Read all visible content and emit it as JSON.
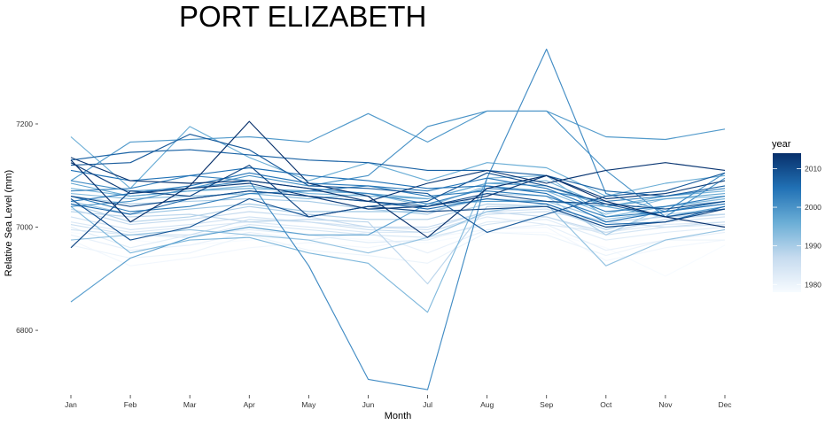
{
  "chart_data": {
    "type": "line",
    "title": "PORT ELIZABETH",
    "xlabel": "Month",
    "ylabel": "Relative Sea Level (mm)",
    "categories": [
      "Jan",
      "Feb",
      "Mar",
      "Apr",
      "May",
      "Jun",
      "Jul",
      "Aug",
      "Sep",
      "Oct",
      "Nov",
      "Dec"
    ],
    "y_ticks": [
      6800,
      7000,
      7200
    ],
    "ylim": [
      6680,
      7375
    ],
    "grid": false,
    "legend": {
      "title": "year",
      "position": "right",
      "ticks": [
        1980,
        1990,
        2000,
        2010
      ],
      "range": [
        1978,
        2014
      ],
      "color_low": "#f7fbff",
      "color_high": "#08306b"
    },
    "series": [
      {
        "year": 1978,
        "values": [
          6990,
          6975,
          6965,
          6975,
          6985,
          6975,
          6970,
          6990,
          6990,
          6960,
          6905,
          6965
        ]
      },
      {
        "year": 1979,
        "values": [
          6975,
          6925,
          6940,
          6960,
          6970,
          6960,
          6980,
          6995,
          7000,
          6935,
          6960,
          6975
        ]
      },
      {
        "year": 1980,
        "values": [
          6965,
          6940,
          6950,
          6985,
          6955,
          6945,
          6930,
          6990,
          6985,
          6945,
          6975,
          6975
        ]
      },
      {
        "year": 1981,
        "values": [
          6985,
          6955,
          6965,
          6990,
          6975,
          6990,
          6950,
          6995,
          7005,
          6955,
          6975,
          6990
        ]
      },
      {
        "year": 1982,
        "values": [
          7000,
          6960,
          6985,
          6995,
          6985,
          6970,
          6975,
          7010,
          7015,
          6975,
          6990,
          7000
        ]
      },
      {
        "year": 1983,
        "values": [
          7010,
          6990,
          7000,
          7010,
          7000,
          6990,
          6990,
          7020,
          7005,
          6990,
          7005,
          7010
        ]
      },
      {
        "year": 1984,
        "values": [
          6995,
          6985,
          6980,
          7005,
          6995,
          6985,
          6980,
          7005,
          7020,
          6985,
          7000,
          7005
        ]
      },
      {
        "year": 1985,
        "values": [
          7020,
          6995,
          7005,
          7020,
          7010,
          7000,
          6995,
          7030,
          7035,
          7000,
          7010,
          7020
        ]
      },
      {
        "year": 1986,
        "values": [
          7005,
          6985,
          6985,
          7015,
          7010,
          6995,
          6990,
          7025,
          7030,
          7010,
          7000,
          7010
        ]
      },
      {
        "year": 1987,
        "values": [
          7035,
          7005,
          7015,
          7030,
          7020,
          7000,
          7000,
          7030,
          7020,
          6990,
          7015,
          7025
        ]
      },
      {
        "year": 1988,
        "values": [
          7030,
          7020,
          7025,
          7010,
          7015,
          7010,
          6890,
          7040,
          7040,
          7010,
          7020,
          7025
        ]
      },
      {
        "year": 1989,
        "values": [
          7045,
          7010,
          7020,
          7040,
          7025,
          7015,
          7015,
          7045,
          7040,
          6995,
          7025,
          7035
        ]
      },
      {
        "year": 1990,
        "values": [
          7060,
          7045,
          7050,
          7055,
          7050,
          7035,
          7025,
          7065,
          7060,
          6985,
          7040,
          7050
        ]
      },
      {
        "year": 1991,
        "values": [
          7050,
          7025,
          7035,
          7045,
          7030,
          7030,
          7030,
          7055,
          7050,
          7015,
          7030,
          7045
        ]
      },
      {
        "year": 1992,
        "values": [
          6975,
          6985,
          6995,
          6985,
          6975,
          6950,
          6980,
          7030,
          7045,
          6925,
          6975,
          6995
        ]
      },
      {
        "year": 1993,
        "values": [
          7065,
          7055,
          7060,
          7065,
          7055,
          7065,
          7040,
          7080,
          7070,
          7025,
          7055,
          7060
        ]
      },
      {
        "year": 1994,
        "values": [
          7040,
          6950,
          6975,
          6980,
          6950,
          6930,
          6835,
          7095,
          7100,
          7020,
          7040,
          7055
        ]
      },
      {
        "year": 1995,
        "values": [
          7075,
          7060,
          7070,
          7080,
          7065,
          7060,
          7055,
          7085,
          7090,
          7040,
          7060,
          7070
        ]
      },
      {
        "year": 1996,
        "values": [
          7175,
          7075,
          7195,
          7135,
          7090,
          7125,
          7090,
          7125,
          7115,
          7060,
          7085,
          7100
        ]
      },
      {
        "year": 1997,
        "values": [
          7085,
          7060,
          7070,
          7075,
          7070,
          7065,
          7055,
          7085,
          7080,
          7040,
          7055,
          7065
        ]
      },
      {
        "year": 1998,
        "values": [
          6855,
          6940,
          6980,
          7000,
          6985,
          6985,
          7045,
          7050,
          7050,
          7040,
          7020,
          7040
        ]
      },
      {
        "year": 1999,
        "values": [
          7090,
          7165,
          7170,
          7175,
          7165,
          7220,
          7165,
          7225,
          7225,
          7175,
          7170,
          7190
        ]
      },
      {
        "year": 2000,
        "values": [
          7040,
          7050,
          7075,
          7100,
          7080,
          7100,
          7195,
          7225,
          7225,
          7110,
          7020,
          7095
        ]
      },
      {
        "year": 2001,
        "values": [
          7090,
          7070,
          7075,
          7090,
          6925,
          6705,
          6685,
          7095,
          7345,
          7065,
          7030,
          7105
        ]
      },
      {
        "year": 2002,
        "values": [
          7070,
          7075,
          7100,
          7090,
          7075,
          7065,
          7045,
          7075,
          7070,
          7050,
          7060,
          7075
        ]
      },
      {
        "year": 2003,
        "values": [
          7060,
          7030,
          7040,
          7065,
          7070,
          7080,
          7060,
          7070,
          7060,
          7020,
          7030,
          7050
        ]
      },
      {
        "year": 2004,
        "values": [
          7050,
          7065,
          7080,
          7105,
          7085,
          7080,
          7070,
          7095,
          7075,
          7030,
          7040,
          7060
        ]
      },
      {
        "year": 2005,
        "values": [
          7110,
          7090,
          7100,
          7115,
          7100,
          7090,
          7075,
          7080,
          7065,
          7010,
          7030,
          7045
        ]
      },
      {
        "year": 2006,
        "values": [
          7045,
          7025,
          7055,
          7070,
          7060,
          7050,
          7035,
          7055,
          7045,
          7005,
          7010,
          7040
        ]
      },
      {
        "year": 2007,
        "values": [
          7130,
          7145,
          7150,
          7140,
          7130,
          7125,
          7110,
          7110,
          7100,
          7070,
          7060,
          7080
        ]
      },
      {
        "year": 2008,
        "values": [
          7120,
          7125,
          7180,
          7150,
          7080,
          7075,
          7065,
          6990,
          7025,
          7060,
          7070,
          7105
        ]
      },
      {
        "year": 2009,
        "values": [
          7055,
          6975,
          7000,
          7055,
          7020,
          7040,
          7050,
          7105,
          7080,
          7045,
          7020,
          7035
        ]
      },
      {
        "year": 2010,
        "values": [
          7060,
          7040,
          7055,
          7070,
          7060,
          7050,
          7040,
          7065,
          7050,
          7045,
          7035,
          7050
        ]
      },
      {
        "year": 2011,
        "values": [
          6960,
          7070,
          7060,
          7120,
          7020,
          7040,
          7030,
          7035,
          7040,
          7000,
          7010,
          7035
        ]
      },
      {
        "year": 2012,
        "values": [
          7125,
          7065,
          7075,
          7085,
          7060,
          7035,
          7040,
          7060,
          7100,
          7055,
          7065,
          7090
        ]
      },
      {
        "year": 2013,
        "values": [
          7135,
          7090,
          7085,
          7090,
          7075,
          7050,
          7085,
          7110,
          7085,
          7110,
          7125,
          7110
        ]
      },
      {
        "year": 2014,
        "values": [
          7130,
          7010,
          7080,
          7205,
          7085,
          7060,
          6980,
          7075,
          7100,
          7050,
          7020,
          7000
        ]
      }
    ]
  }
}
